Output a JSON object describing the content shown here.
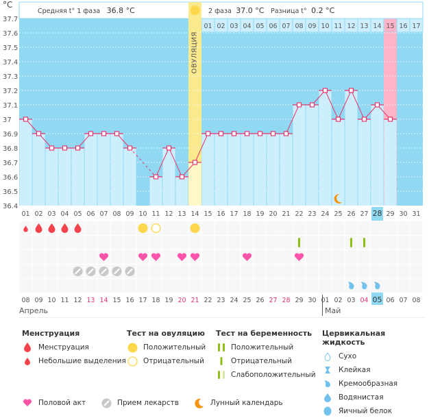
{
  "header": {
    "unit": "°C",
    "phase1_label": "Средняя t° 1 фаза",
    "phase1_value": "36.8 °C",
    "phase2_label": "2 фаза",
    "phase2_value": "37.0 °C",
    "diff_label": "Разница t°",
    "diff_value": "0.2 °C",
    "ovulation_label": "ОВУЛЯЦИЯ"
  },
  "chart_data": {
    "type": "line",
    "ylabel": "°C",
    "ylim": [
      36.4,
      37.7
    ],
    "yticks": [
      "36.4",
      "36.5",
      "36.6",
      "36.7",
      "36.8",
      "36.9",
      "37",
      "37.1",
      "37.2",
      "37.3",
      "37.4",
      "37.5",
      "37.6",
      "37.7"
    ],
    "cycle_days": [
      "01",
      "02",
      "03",
      "04",
      "05",
      "06",
      "07",
      "08",
      "09",
      "10",
      "11",
      "12",
      "13",
      "14",
      "15",
      "16",
      "17",
      "18",
      "19",
      "20",
      "21",
      "22",
      "23",
      "24",
      "25",
      "26",
      "27",
      "28",
      "29",
      "30",
      "31"
    ],
    "highlighted_day": "28",
    "post_ovulation_days": [
      "01",
      "02",
      "03",
      "04",
      "05",
      "06",
      "07",
      "08",
      "09",
      "10",
      "11",
      "12",
      "13",
      "14",
      "15",
      "16",
      "17"
    ],
    "ovulation_day_index": 14,
    "expected_period_day_index": 29,
    "temperatures": [
      37.0,
      36.9,
      36.8,
      36.8,
      36.8,
      36.9,
      36.9,
      36.9,
      36.8,
      null,
      36.6,
      36.8,
      36.6,
      36.7,
      36.9,
      36.9,
      36.9,
      36.9,
      36.9,
      36.9,
      36.9,
      37.1,
      37.1,
      37.2,
      37.0,
      37.2,
      37.0,
      37.1,
      37.0,
      null,
      null
    ],
    "dashed_gap": [
      9,
      11
    ],
    "lunar_calendar_day_index": 25,
    "calendar_dates": [
      "08",
      "09",
      "10",
      "11",
      "12",
      "13",
      "14",
      "15",
      "16",
      "17",
      "18",
      "19",
      "20",
      "21",
      "22",
      "23",
      "24",
      "25",
      "26",
      "27",
      "28",
      "29",
      "30",
      "01",
      "02",
      "03",
      "04",
      "05",
      "06",
      "07",
      "08"
    ],
    "weekend_date_indices": [
      5,
      6,
      12,
      13,
      19,
      20,
      26
    ],
    "today_date_index": 27,
    "months": [
      {
        "label": "Апрель",
        "start_index": 0
      },
      {
        "label": "Май",
        "start_index": 23
      }
    ],
    "markers": {
      "menstruation": {
        "light": [
          1
        ],
        "normal": [
          2,
          3,
          4,
          5
        ]
      },
      "ovulation_test": {
        "positive": [
          10,
          14
        ],
        "negative": [
          11
        ]
      },
      "pregnancy_test": {
        "negative": [
          22,
          26,
          27
        ]
      },
      "intercourse": [
        7,
        10,
        11,
        13,
        14,
        18,
        22
      ],
      "medication": [
        5,
        6,
        7,
        8,
        9
      ],
      "cervical_fluid": {
        "creamy": [
          26,
          27,
          28
        ]
      }
    }
  },
  "legend": {
    "menstruation": {
      "title": "Менструация",
      "items": [
        "Менструация",
        "Небольшие выделения"
      ]
    },
    "ovulation_test": {
      "title": "Тест на овуляцию",
      "items": [
        "Положительный",
        "Отрицательный"
      ]
    },
    "pregnancy_test": {
      "title": "Тест на беременность",
      "items": [
        "Положительный",
        "Отрицательный",
        "Слабоположительный"
      ]
    },
    "cervical_fluid": {
      "title": "Цервикальная жидкость",
      "items": [
        "Сухо",
        "Клейкая",
        "Кремообразная",
        "Водянистая",
        "Яичный белок"
      ]
    },
    "bottom": [
      "Половой акт",
      "Прием лекарств",
      "Лунный календарь"
    ]
  },
  "colors": {
    "bg_blue": "#91d8f2",
    "bar_light": "#cdeefc",
    "line": "#e8356a",
    "ovulation": "#fbe98d",
    "ovulation_light": "#fff7c7",
    "period": "#ffb3c6",
    "blood": "#f2434c",
    "test_yellow": "#fdd74c",
    "heart": "#fb55a9",
    "pill": "#c8c8c8",
    "moon": "#f4940f",
    "preg": "#8cbf12",
    "preg_light": "#d6e7a8",
    "fluid": "#72c1ec",
    "weekend": "#e8356a"
  }
}
